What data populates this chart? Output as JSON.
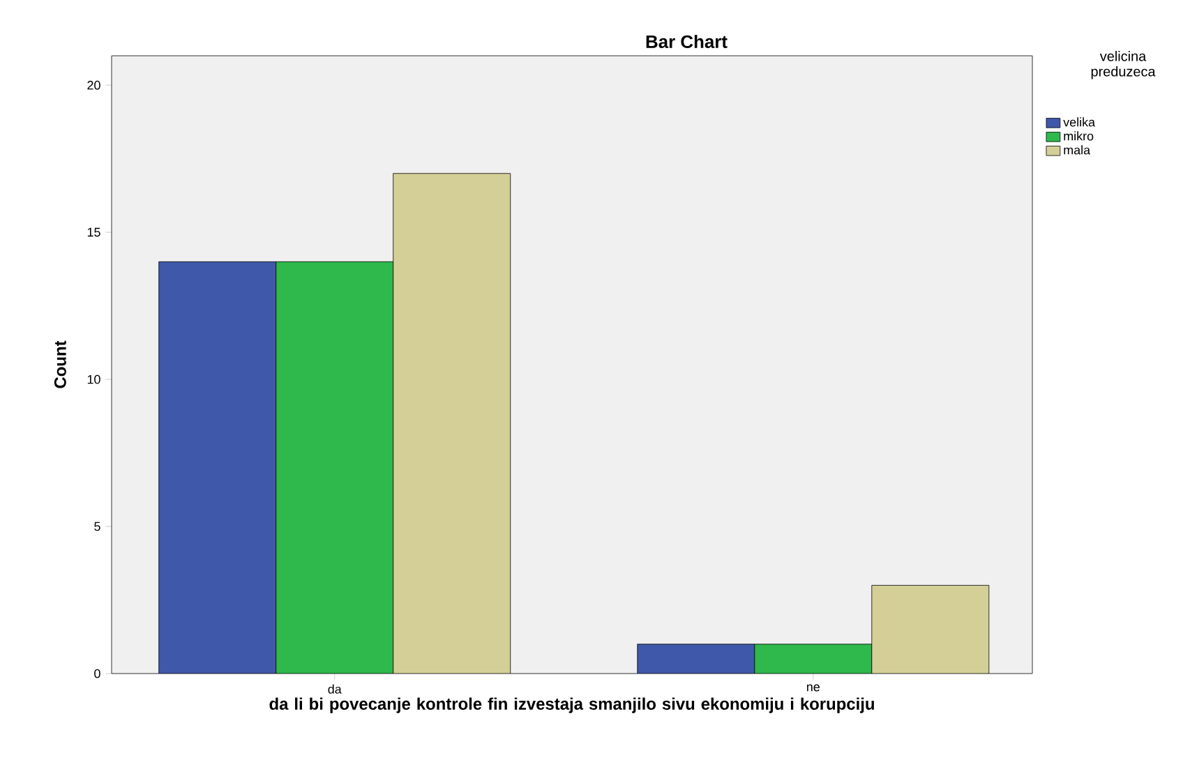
{
  "chart_data": {
    "type": "bar",
    "title": "Bar Chart",
    "xlabel": "da li bi povecanje kontrole fin izvestaja smanjilo sivu ekonomiju i korupciju",
    "ylabel": "Count",
    "legend_title": "velicina preduzeca",
    "categories": [
      "da",
      "ne"
    ],
    "series": [
      {
        "name": "velika",
        "color": "#3f58a9",
        "values": [
          14,
          1
        ]
      },
      {
        "name": "mikro",
        "color": "#2fb84b",
        "values": [
          14,
          1
        ]
      },
      {
        "name": "mala",
        "color": "#d4cf96",
        "values": [
          17,
          3
        ]
      }
    ],
    "ylim": [
      0,
      21
    ],
    "yticks": [
      0,
      5,
      10,
      15,
      20
    ],
    "grid": false,
    "legend": "top right"
  }
}
